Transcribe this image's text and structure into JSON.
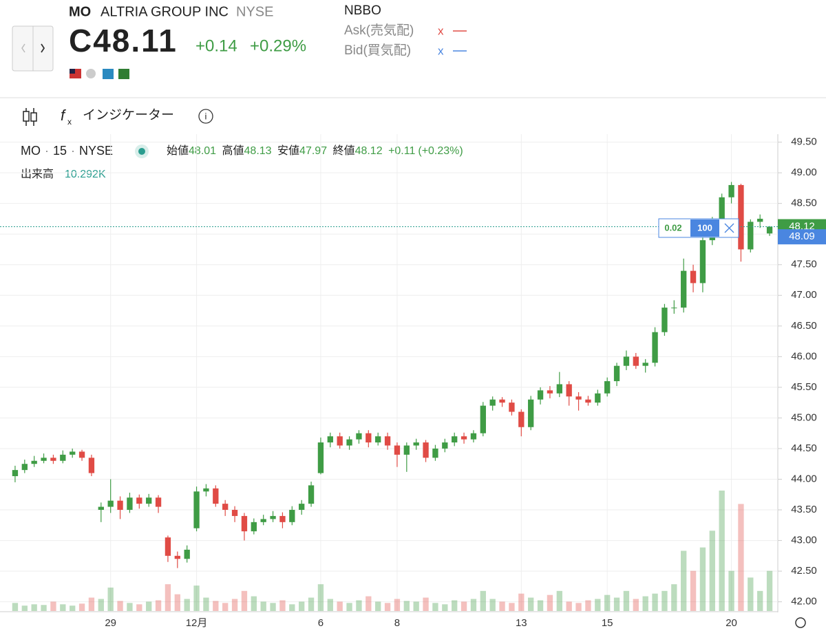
{
  "header": {
    "symbol": "MO",
    "name": "ALTRIA GROUP INC",
    "exchange": "NYSE",
    "price": "C48.11",
    "change": "+0.14",
    "change_pct": "+0.29%",
    "nbbo": "NBBO",
    "ask": "Ask(売気配)",
    "bid": "Bid(買気配)",
    "ask_mark": "x",
    "bid_mark": "x"
  },
  "toolbar": {
    "indicators": "インジケーター"
  },
  "legend": {
    "symbol": "MO",
    "interval": "15",
    "exchange": "NYSE",
    "open_label": "始値",
    "high_label": "高値",
    "low_label": "安値",
    "close_label": "終値",
    "change": "+0.11",
    "change_pct": "(+0.23%)",
    "volume_label": "出来高",
    "volume_value": "10.292K"
  },
  "order": {
    "spread": "0.02",
    "size": "100"
  },
  "chart_data": {
    "type": "candlestick",
    "categories": [
      null,
      null,
      null,
      null,
      null,
      null,
      null,
      null,
      null,
      null,
      "29",
      null,
      null,
      null,
      null,
      null,
      null,
      null,
      null,
      "12月",
      null,
      null,
      null,
      null,
      null,
      null,
      null,
      null,
      null,
      null,
      null,
      null,
      "6",
      null,
      null,
      null,
      null,
      null,
      null,
      null,
      "8",
      null,
      null,
      null,
      null,
      null,
      null,
      null,
      null,
      null,
      null,
      null,
      null,
      "13",
      null,
      null,
      null,
      null,
      null,
      null,
      null,
      null,
      "15",
      null,
      null,
      null,
      null,
      null,
      null,
      null,
      null,
      null,
      null,
      null,
      null,
      "20",
      null,
      null,
      null,
      null
    ],
    "open": [
      44.05,
      44.15,
      44.25,
      44.3,
      44.35,
      44.3,
      44.4,
      44.45,
      44.35,
      43.5,
      43.55,
      43.65,
      43.5,
      43.7,
      43.6,
      43.7,
      43.05,
      42.75,
      42.7,
      43.2,
      43.8,
      43.85,
      43.6,
      43.5,
      43.4,
      43.15,
      43.3,
      43.35,
      43.4,
      43.3,
      43.5,
      43.6,
      44.1,
      44.6,
      44.7,
      44.55,
      44.65,
      44.75,
      44.6,
      44.7,
      44.55,
      44.4,
      44.55,
      44.6,
      44.35,
      44.5,
      44.6,
      44.7,
      44.65,
      44.75,
      45.2,
      45.3,
      45.25,
      45.1,
      44.85,
      45.3,
      45.45,
      45.4,
      45.55,
      45.35,
      45.3,
      45.25,
      45.4,
      45.6,
      45.85,
      46.0,
      45.85,
      45.9,
      46.4,
      46.8,
      46.8,
      47.4,
      47.2,
      47.9,
      48.2,
      48.6,
      48.8,
      47.75,
      48.2,
      48.01
    ],
    "high": [
      44.22,
      44.32,
      44.38,
      44.42,
      44.4,
      44.47,
      44.5,
      44.48,
      44.4,
      43.62,
      44.0,
      43.72,
      43.78,
      43.75,
      43.76,
      43.74,
      43.08,
      42.82,
      42.92,
      43.88,
      43.92,
      43.9,
      43.66,
      43.56,
      43.45,
      43.36,
      43.42,
      43.48,
      43.46,
      43.56,
      43.66,
      43.96,
      44.68,
      44.76,
      44.76,
      44.7,
      44.8,
      44.8,
      44.76,
      44.76,
      44.6,
      44.6,
      44.66,
      44.64,
      44.56,
      44.66,
      44.76,
      44.76,
      44.8,
      45.26,
      45.35,
      45.34,
      45.3,
      45.14,
      45.36,
      45.5,
      45.52,
      45.75,
      45.6,
      45.42,
      45.36,
      45.46,
      45.66,
      45.9,
      46.1,
      46.06,
      45.96,
      46.48,
      46.86,
      46.92,
      47.6,
      47.5,
      47.96,
      48.28,
      48.66,
      48.85,
      48.82,
      48.24,
      48.32,
      48.13
    ],
    "low": [
      43.95,
      44.1,
      44.2,
      44.26,
      44.25,
      44.26,
      44.35,
      44.3,
      44.05,
      43.3,
      43.45,
      43.35,
      43.45,
      43.52,
      43.55,
      43.45,
      42.65,
      42.55,
      42.64,
      43.15,
      43.72,
      43.55,
      43.4,
      43.3,
      43.0,
      43.1,
      43.25,
      43.3,
      43.2,
      43.25,
      43.42,
      43.55,
      44.08,
      44.52,
      44.5,
      44.48,
      44.58,
      44.52,
      44.55,
      44.48,
      44.2,
      44.12,
      44.48,
      44.28,
      44.3,
      44.44,
      44.54,
      44.58,
      44.6,
      44.7,
      45.12,
      45.18,
      45.04,
      44.7,
      44.8,
      45.22,
      45.32,
      45.34,
      45.2,
      45.12,
      45.2,
      45.2,
      45.35,
      45.52,
      45.78,
      45.8,
      45.74,
      45.84,
      46.34,
      46.7,
      46.72,
      47.05,
      47.05,
      47.82,
      48.1,
      48.5,
      47.55,
      47.7,
      48.1,
      47.97
    ],
    "close": [
      44.15,
      44.25,
      44.3,
      44.35,
      44.3,
      44.4,
      44.45,
      44.35,
      44.1,
      43.55,
      43.65,
      43.5,
      43.7,
      43.6,
      43.7,
      43.55,
      42.75,
      42.7,
      42.85,
      43.8,
      43.85,
      43.6,
      43.5,
      43.4,
      43.15,
      43.3,
      43.35,
      43.4,
      43.3,
      43.5,
      43.6,
      43.9,
      44.6,
      44.7,
      44.55,
      44.65,
      44.75,
      44.6,
      44.7,
      44.55,
      44.4,
      44.55,
      44.6,
      44.35,
      44.5,
      44.6,
      44.7,
      44.65,
      44.75,
      45.2,
      45.3,
      45.25,
      45.1,
      44.85,
      45.3,
      45.45,
      45.4,
      45.55,
      45.35,
      45.3,
      45.25,
      45.4,
      45.6,
      45.85,
      46.0,
      45.85,
      45.9,
      46.4,
      46.8,
      46.8,
      47.4,
      47.2,
      47.9,
      48.2,
      48.6,
      48.8,
      47.75,
      48.2,
      48.25,
      48.12
    ],
    "volume": [
      12,
      8,
      10,
      9,
      14,
      10,
      8,
      11,
      20,
      18,
      35,
      15,
      12,
      10,
      14,
      16,
      40,
      25,
      18,
      38,
      20,
      15,
      12,
      18,
      30,
      22,
      14,
      12,
      16,
      10,
      14,
      20,
      40,
      18,
      14,
      12,
      16,
      22,
      14,
      12,
      18,
      15,
      14,
      20,
      12,
      10,
      16,
      14,
      18,
      30,
      18,
      14,
      12,
      26,
      20,
      16,
      24,
      30,
      14,
      12,
      16,
      18,
      24,
      20,
      30,
      18,
      22,
      26,
      30,
      40,
      90,
      60,
      95,
      120,
      180,
      60,
      160,
      50,
      30,
      60
    ],
    "up_color": "#3f9c45",
    "down_color": "#e04b45",
    "bid_color": "#4a86e0",
    "bid": 48.09,
    "ylim": [
      41.85,
      49.63
    ],
    "yticks": [
      {
        "value": 42,
        "label": "42.00"
      },
      {
        "value": 42.5,
        "label": "42.50"
      },
      {
        "value": 43,
        "label": "43.00"
      },
      {
        "value": 43.5,
        "label": "43.50"
      },
      {
        "value": 44,
        "label": "44.00"
      },
      {
        "value": 44.5,
        "label": "44.50"
      },
      {
        "value": 45,
        "label": "45.00"
      },
      {
        "value": 45.5,
        "label": "45.50"
      },
      {
        "value": 46,
        "label": "46.00"
      },
      {
        "value": 46.5,
        "label": "46.50"
      },
      {
        "value": 47,
        "label": "47.00"
      },
      {
        "value": 47.5,
        "label": "47.50"
      },
      {
        "value": 48,
        "label": "48.00"
      },
      {
        "value": 48.5,
        "label": "48.50"
      },
      {
        "value": 49,
        "label": "49.00"
      },
      {
        "value": 49.5,
        "label": "49.50"
      }
    ],
    "grid": true
  }
}
